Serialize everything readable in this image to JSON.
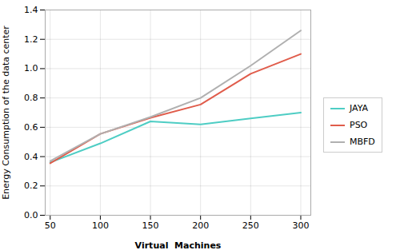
{
  "chart_data": {
    "type": "line",
    "xlabel": "Virtual  Machines",
    "ylabel": "Energy Consumption of the data center",
    "x": [
      50,
      100,
      150,
      200,
      250,
      300
    ],
    "series": [
      {
        "name": "JAYA",
        "color": "#4ecdc4",
        "values": [
          0.36,
          0.49,
          0.64,
          0.62,
          0.66,
          0.7
        ]
      },
      {
        "name": "PSO",
        "color": "#e05c4b",
        "values": [
          0.355,
          0.555,
          0.665,
          0.755,
          0.965,
          1.1
        ]
      },
      {
        "name": "MBFD",
        "color": "#b0b0b0",
        "values": [
          0.37,
          0.555,
          0.67,
          0.8,
          1.02,
          1.26
        ]
      }
    ],
    "xlim": [
      45,
      310
    ],
    "ylim": [
      0,
      1.4
    ],
    "xticks": [
      50,
      100,
      150,
      200,
      250,
      300
    ],
    "yticks": [
      {
        "value": 0,
        "label": "0.0"
      },
      0.2,
      0.4,
      0.6,
      0.8,
      {
        "value": 1,
        "label": "1.0"
      },
      1.2,
      1.4
    ],
    "grid": true,
    "legend": "right"
  }
}
